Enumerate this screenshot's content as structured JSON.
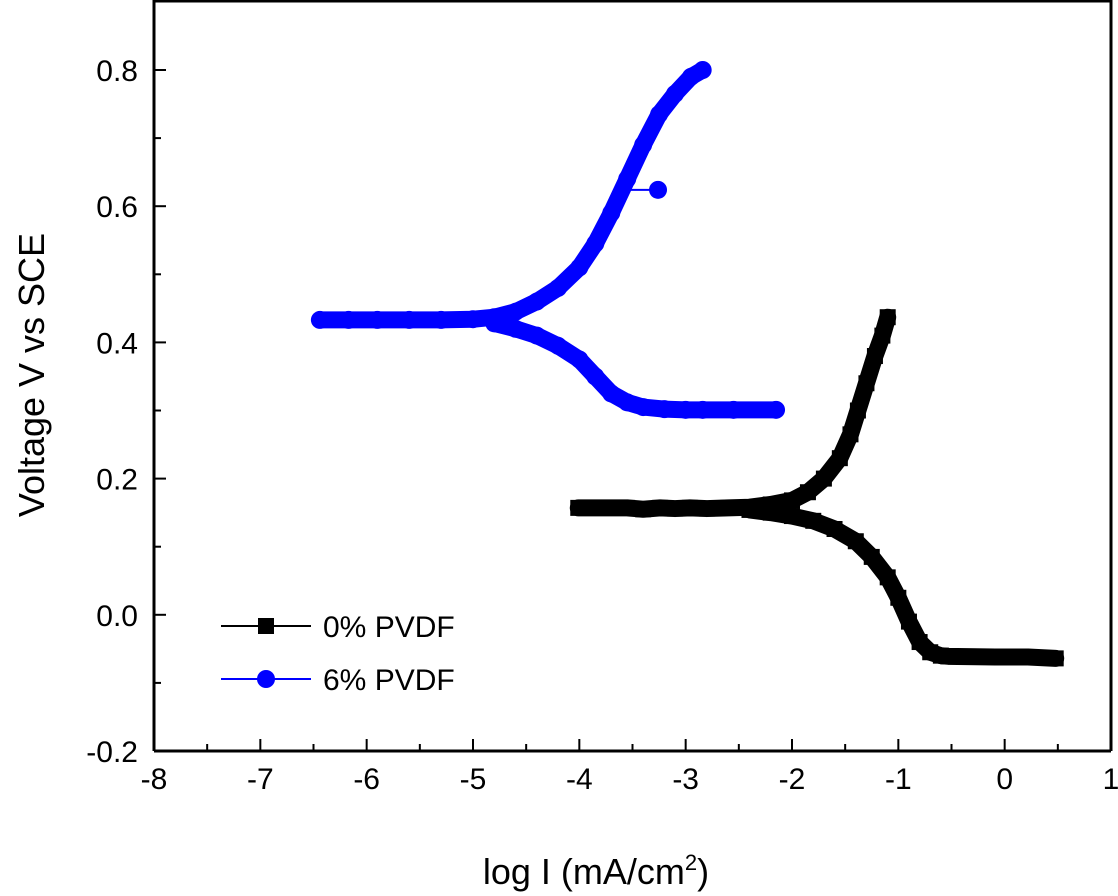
{
  "chart_data": {
    "type": "line",
    "title": "",
    "xlabel": "log I (mA/cm",
    "xlabel_superscript": "2",
    "xlabel_suffix": ")",
    "ylabel": "Voltage V vs SCE",
    "xlim": [
      -8,
      1
    ],
    "ylim": [
      -0.2,
      0.9
    ],
    "x_ticks": [
      -8,
      -7,
      -6,
      -5,
      -4,
      -3,
      -2,
      -1,
      0,
      1
    ],
    "x_tick_labels": [
      "-8",
      "-7",
      "-6",
      "-5",
      "-4",
      "-3",
      "-2",
      "-1",
      "0",
      "1"
    ],
    "y_ticks": [
      -0.2,
      0.0,
      0.2,
      0.4,
      0.6,
      0.8
    ],
    "y_tick_labels": [
      "-0.2",
      "0.0",
      "0.2",
      "0.4",
      "0.6",
      "0.8"
    ],
    "grid": false,
    "legend_position": "bottom-left",
    "series": [
      {
        "name": "0% PVDF",
        "color": "#000000",
        "marker": "square",
        "points": [
          [
            -4.01,
            0.157
          ],
          [
            -3.55,
            0.157
          ],
          [
            -3.4,
            0.155
          ],
          [
            -3.24,
            0.157
          ],
          [
            -3.1,
            0.156
          ],
          [
            -2.96,
            0.157
          ],
          [
            -2.8,
            0.156
          ],
          [
            -2.6,
            0.157
          ],
          [
            -2.4,
            0.158
          ],
          [
            -2.2,
            0.162
          ],
          [
            -2.0,
            0.168
          ],
          [
            -1.85,
            0.18
          ],
          [
            -1.7,
            0.2
          ],
          [
            -1.55,
            0.23
          ],
          [
            -1.45,
            0.265
          ],
          [
            -1.38,
            0.3
          ],
          [
            -1.3,
            0.34
          ],
          [
            -1.22,
            0.38
          ],
          [
            -1.15,
            0.41
          ],
          [
            -1.1,
            0.437
          ],
          [
            -2.4,
            0.154
          ],
          [
            -2.2,
            0.15
          ],
          [
            -2.0,
            0.145
          ],
          [
            -1.8,
            0.138
          ],
          [
            -1.6,
            0.126
          ],
          [
            -1.4,
            0.108
          ],
          [
            -1.25,
            0.085
          ],
          [
            -1.1,
            0.055
          ],
          [
            -1.0,
            0.025
          ],
          [
            -0.9,
            -0.01
          ],
          [
            -0.8,
            -0.04
          ],
          [
            -0.7,
            -0.055
          ],
          [
            -0.6,
            -0.06
          ],
          [
            -0.53,
            -0.061
          ],
          [
            -0.09,
            -0.062
          ],
          [
            0.22,
            -0.062
          ],
          [
            0.48,
            -0.064
          ]
        ]
      },
      {
        "name": "6% PVDF",
        "color": "#0000ff",
        "marker": "circle",
        "points": [
          [
            -6.44,
            0.433
          ],
          [
            -6.17,
            0.433
          ],
          [
            -5.9,
            0.433
          ],
          [
            -5.6,
            0.433
          ],
          [
            -5.3,
            0.433
          ],
          [
            -5.0,
            0.434
          ],
          [
            -4.8,
            0.437
          ],
          [
            -4.6,
            0.445
          ],
          [
            -4.4,
            0.46
          ],
          [
            -4.2,
            0.48
          ],
          [
            -4.0,
            0.51
          ],
          [
            -3.85,
            0.545
          ],
          [
            -3.7,
            0.59
          ],
          [
            -3.55,
            0.64
          ],
          [
            -3.4,
            0.69
          ],
          [
            -3.25,
            0.735
          ],
          [
            -3.1,
            0.765
          ],
          [
            -2.95,
            0.79
          ],
          [
            -2.84,
            0.8
          ],
          [
            -4.8,
            0.428
          ],
          [
            -4.6,
            0.42
          ],
          [
            -4.4,
            0.41
          ],
          [
            -4.2,
            0.395
          ],
          [
            -4.0,
            0.375
          ],
          [
            -3.85,
            0.35
          ],
          [
            -3.7,
            0.325
          ],
          [
            -3.55,
            0.312
          ],
          [
            -3.4,
            0.305
          ],
          [
            -3.2,
            0.302
          ],
          [
            -3.0,
            0.301
          ],
          [
            -2.84,
            0.301
          ],
          [
            -2.55,
            0.301
          ],
          [
            -2.15,
            0.301
          ]
        ],
        "outlier": [
          -3.26,
          0.624
        ]
      }
    ]
  }
}
